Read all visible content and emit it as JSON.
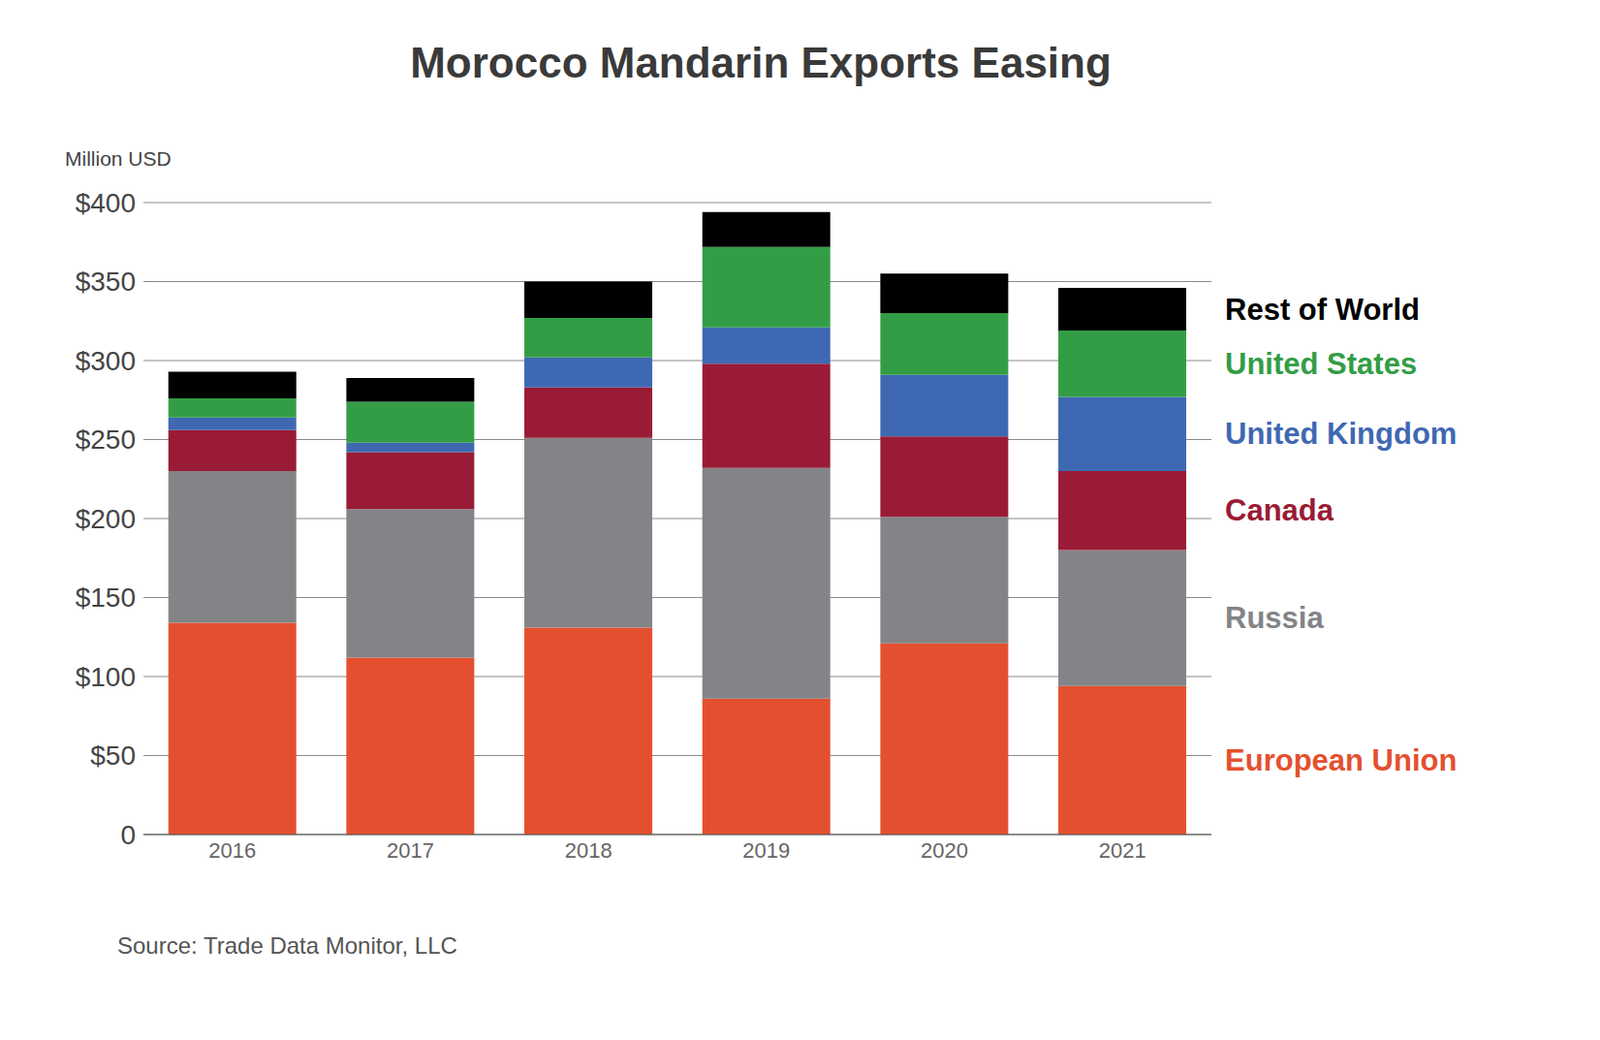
{
  "chart_data": {
    "type": "bar",
    "title": "Morocco Mandarin Exports Easing",
    "y_label": "Million USD",
    "source": "Source: Trade Data Monitor, LLC",
    "categories": [
      "2016",
      "2017",
      "2018",
      "2019",
      "2020",
      "2021"
    ],
    "series": [
      {
        "name": "European Union",
        "color": "#e4502f",
        "values": [
          134,
          112,
          131,
          86,
          121,
          94
        ]
      },
      {
        "name": "Russia",
        "color": "#838487",
        "values": [
          96,
          94,
          120,
          146,
          80,
          86
        ]
      },
      {
        "name": "Canada",
        "color": "#9a1b35",
        "values": [
          26,
          36,
          32,
          66,
          51,
          50
        ]
      },
      {
        "name": "United Kingdom",
        "color": "#3f68b2",
        "values": [
          8,
          6,
          19,
          23,
          39,
          47
        ]
      },
      {
        "name": "United States",
        "color": "#339d46",
        "values": [
          12,
          26,
          25,
          51,
          39,
          42
        ]
      },
      {
        "name": "Rest of World",
        "color": "#000000",
        "values": [
          17,
          15,
          23,
          22,
          25,
          27
        ]
      }
    ],
    "ylim": [
      0,
      400
    ],
    "yticks": [
      0,
      {
        "value": 50,
        "label": "$50"
      },
      {
        "value": 100,
        "label": "$100"
      },
      {
        "value": 150,
        "label": "$150"
      },
      {
        "value": 200,
        "label": "$200"
      },
      {
        "value": 250,
        "label": "$250"
      },
      {
        "value": 300,
        "label": "$300"
      },
      {
        "value": 350,
        "label": "$350"
      },
      {
        "value": 400,
        "label": "$400"
      }
    ],
    "grid": true,
    "stacked": true,
    "legend": "right"
  }
}
